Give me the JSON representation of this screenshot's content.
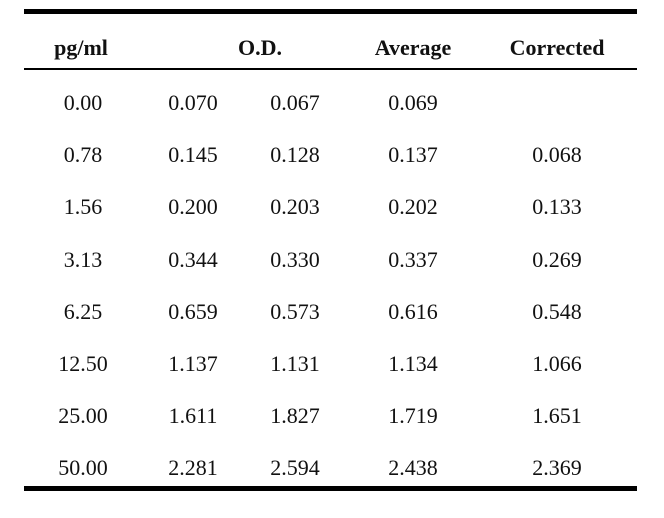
{
  "table": {
    "headers": {
      "conc": "pg/ml",
      "od": "O.D.",
      "average": "Average",
      "corrected": "Corrected"
    },
    "rows": [
      {
        "conc": "0.00",
        "od1": "0.070",
        "od2": "0.067",
        "average": "0.069",
        "corrected": ""
      },
      {
        "conc": "0.78",
        "od1": "0.145",
        "od2": "0.128",
        "average": "0.137",
        "corrected": "0.068"
      },
      {
        "conc": "1.56",
        "od1": "0.200",
        "od2": "0.203",
        "average": "0.202",
        "corrected": "0.133"
      },
      {
        "conc": "3.13",
        "od1": "0.344",
        "od2": "0.330",
        "average": "0.337",
        "corrected": "0.269"
      },
      {
        "conc": "6.25",
        "od1": "0.659",
        "od2": "0.573",
        "average": "0.616",
        "corrected": "0.548"
      },
      {
        "conc": "12.50",
        "od1": "1.137",
        "od2": "1.131",
        "average": "1.134",
        "corrected": "1.066"
      },
      {
        "conc": "25.00",
        "od1": "1.611",
        "od2": "1.827",
        "average": "1.719",
        "corrected": "1.651"
      },
      {
        "conc": "50.00",
        "od1": "2.281",
        "od2": "2.594",
        "average": "2.438",
        "corrected": "2.369"
      }
    ]
  }
}
